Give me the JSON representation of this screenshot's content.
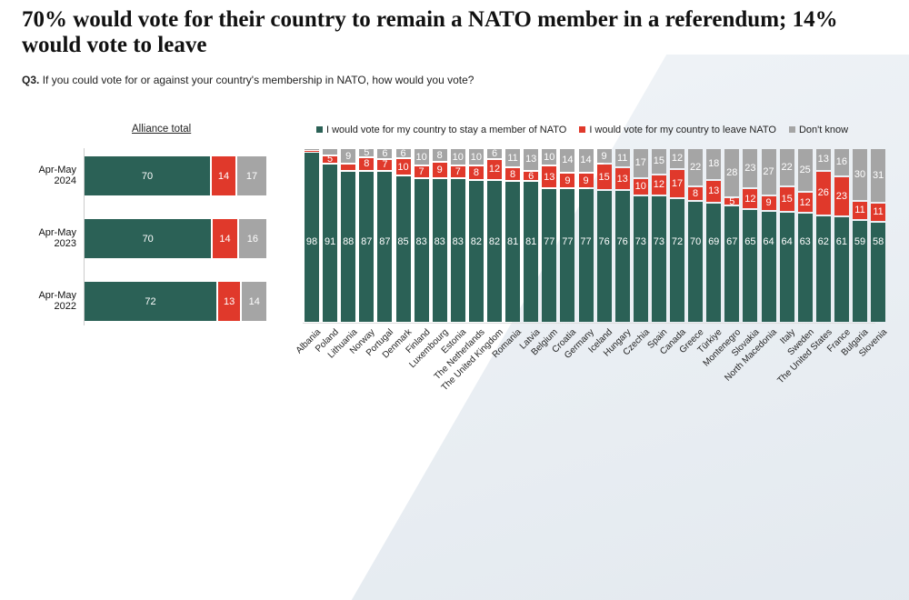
{
  "title": "70% would vote for their country to remain a NATO member in a referendum; 14% would vote to leave",
  "question_prefix": "Q3.",
  "question": "If you could vote for or against your country's membership in NATO, how would you vote?",
  "colors": {
    "stay": "#2b6156",
    "leave": "#e0392b",
    "dont_know": "#a5a5a5"
  },
  "chart_data": [
    {
      "type": "bar",
      "orientation": "horizontal",
      "stacked": true,
      "title": "Alliance total",
      "categories": [
        "Apr-May 2024",
        "Apr-May 2023",
        "Apr-May 2022"
      ],
      "series": [
        {
          "name": "I would vote for my country to stay a member of NATO",
          "values": [
            70,
            70,
            72
          ]
        },
        {
          "name": "I would vote for my country to leave NATO",
          "values": [
            14,
            14,
            13
          ]
        },
        {
          "name": "Don't know",
          "values": [
            17,
            16,
            14
          ]
        }
      ]
    },
    {
      "type": "bar",
      "orientation": "vertical",
      "stacked": true,
      "legend": "top",
      "categories": [
        "Albania",
        "Poland",
        "Lithuania",
        "Norway",
        "Portugal",
        "Denmark",
        "Finland",
        "Luxembourg",
        "Estonia",
        "The Netherlands",
        "The United Kingdom",
        "Romania",
        "Latvia",
        "Belgium",
        "Croatia",
        "Germany",
        "Iceland",
        "Hungary",
        "Czechia",
        "Spain",
        "Canada",
        "Greece",
        "Türkiye",
        "Montenegro",
        "Slovakia",
        "North Macedonia",
        "Italy",
        "Sweden",
        "The United States",
        "France",
        "Bulgaria",
        "Slovenia"
      ],
      "series": [
        {
          "name": "I would vote for my country to stay a member of NATO",
          "values": [
            98,
            91,
            88,
            87,
            87,
            85,
            83,
            83,
            83,
            82,
            82,
            81,
            81,
            77,
            77,
            77,
            76,
            76,
            73,
            73,
            72,
            70,
            69,
            67,
            65,
            64,
            64,
            63,
            62,
            61,
            59,
            58
          ]
        },
        {
          "name": "I would vote for my country to leave NATO",
          "values": [
            1,
            5,
            4,
            8,
            7,
            10,
            7,
            9,
            7,
            8,
            12,
            8,
            6,
            13,
            9,
            9,
            15,
            13,
            10,
            12,
            17,
            8,
            13,
            5,
            12,
            9,
            15,
            12,
            26,
            23,
            11,
            11
          ]
        },
        {
          "name": "Don't know",
          "values": [
            1,
            4,
            9,
            5,
            6,
            6,
            10,
            8,
            10,
            10,
            6,
            11,
            13,
            10,
            14,
            14,
            9,
            11,
            17,
            15,
            12,
            22,
            18,
            28,
            23,
            27,
            22,
            25,
            13,
            16,
            30,
            31
          ]
        }
      ]
    }
  ]
}
